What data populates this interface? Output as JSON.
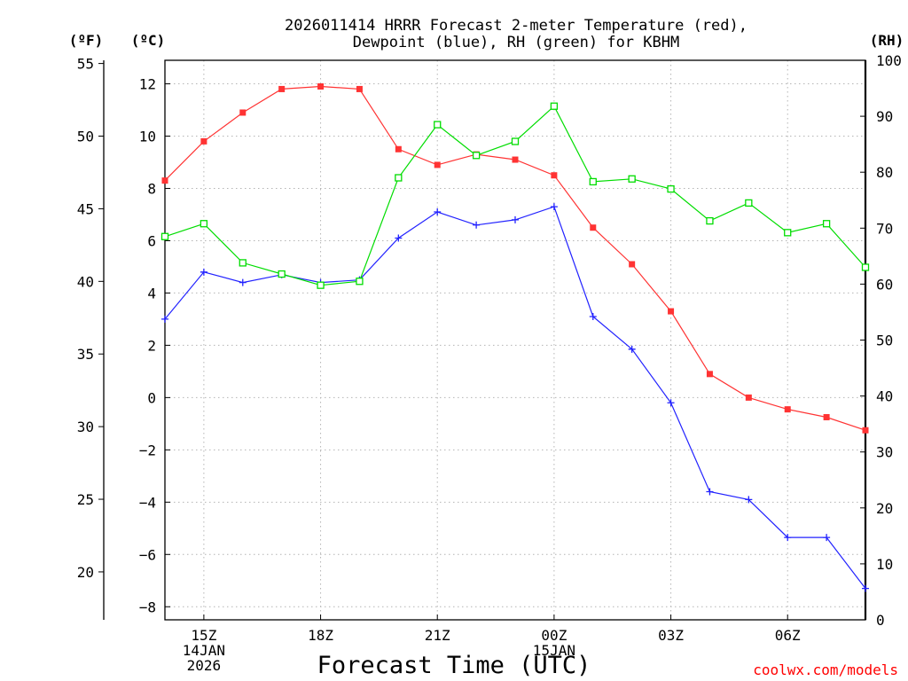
{
  "chart_data": {
    "type": "line",
    "title_lines": [
      "2026011414 HRRR Forecast 2-meter Temperature (red),",
      "Dewpoint (blue), RH (green) for KBHM"
    ],
    "xlabel": "Forecast Time (UTC)",
    "credit": "coolwx.com/models",
    "units": {
      "left_f": "(ºF)",
      "left_c": "(ºC)",
      "right_rh": "(RH)"
    },
    "x_hours": [
      14,
      15,
      16,
      17,
      18,
      19,
      20,
      21,
      22,
      23,
      24,
      25,
      26,
      27,
      28,
      29,
      30,
      31,
      32
    ],
    "x_ticks": [
      {
        "hour": 15,
        "lines": [
          "15Z",
          "14JAN",
          "2026"
        ]
      },
      {
        "hour": 18,
        "lines": [
          "18Z"
        ]
      },
      {
        "hour": 21,
        "lines": [
          "21Z"
        ]
      },
      {
        "hour": 24,
        "lines": [
          "00Z",
          "15JAN"
        ]
      },
      {
        "hour": 27,
        "lines": [
          "03Z"
        ]
      },
      {
        "hour": 30,
        "lines": [
          "06Z"
        ]
      }
    ],
    "xlim": [
      14,
      32
    ],
    "celsius_axis": {
      "ylim": [
        -8.5,
        12.9
      ],
      "ticks": [
        12,
        10,
        8,
        6,
        4,
        2,
        0,
        -2,
        -4,
        -6,
        -8
      ],
      "labels": [
        "12",
        "10",
        "8",
        "6",
        "4",
        "2",
        "0",
        "−2",
        "−4",
        "−6",
        "−8"
      ]
    },
    "fahrenheit_axis": {
      "ticks": [
        55,
        50,
        45,
        40,
        35,
        30,
        25,
        20
      ],
      "labels": [
        "55",
        "50",
        "45",
        "40",
        "35",
        "30",
        "25",
        "20"
      ]
    },
    "rh_axis": {
      "ylim": [
        0,
        100
      ],
      "ticks": [
        0,
        10,
        20,
        30,
        40,
        50,
        60,
        70,
        80,
        90,
        100
      ],
      "labels": [
        "0",
        "10",
        "20",
        "30",
        "40",
        "50",
        "60",
        "70",
        "80",
        "90",
        "100"
      ]
    },
    "series": [
      {
        "name": "Temperature",
        "unit": "C",
        "axis": "celsius",
        "color": "#ff3333",
        "marker": "filled-square",
        "values": [
          8.3,
          9.8,
          10.9,
          11.8,
          11.9,
          11.8,
          9.5,
          8.9,
          9.3,
          9.1,
          8.5,
          6.5,
          5.1,
          3.3,
          0.9,
          0.0,
          -0.45,
          -0.75,
          -1.25
        ]
      },
      {
        "name": "Dewpoint",
        "unit": "C",
        "axis": "celsius",
        "color": "#2222ff",
        "marker": "plus",
        "values": [
          3.0,
          4.8,
          4.4,
          4.7,
          4.4,
          4.5,
          6.1,
          7.1,
          6.6,
          6.8,
          7.3,
          3.1,
          1.85,
          -0.2,
          -3.6,
          -3.9,
          -5.35,
          -5.35,
          -7.3
        ]
      },
      {
        "name": "RH",
        "unit": "%",
        "axis": "rh",
        "color": "#00dd00",
        "marker": "open-square",
        "values": [
          68.5,
          70.8,
          63.8,
          61.8,
          59.8,
          60.5,
          79.0,
          88.5,
          83.0,
          85.5,
          91.8,
          78.3,
          78.8,
          77.0,
          71.3,
          74.5,
          69.2,
          70.8,
          63.0
        ]
      }
    ]
  }
}
